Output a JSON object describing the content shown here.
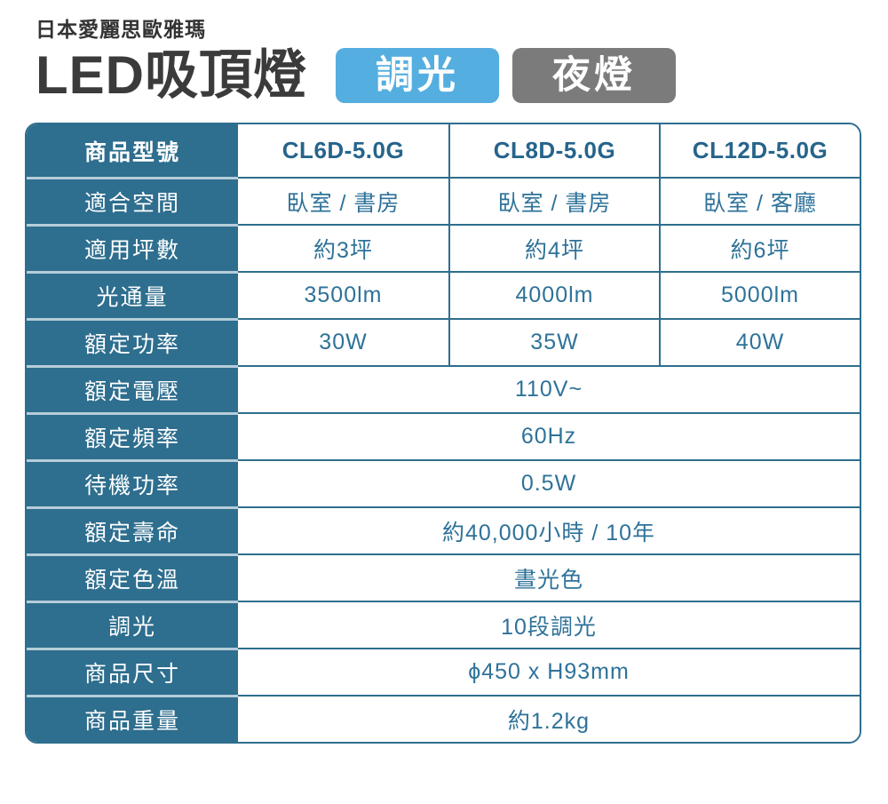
{
  "header": {
    "brand": "日本愛麗思歐雅瑪",
    "title": "LED吸頂燈",
    "badges": [
      {
        "label": "調光",
        "color": "#55aee0"
      },
      {
        "label": "夜燈",
        "color": "#7b7b7b"
      }
    ]
  },
  "colors": {
    "table_teal": "#2e6e8e",
    "value_text": "#2e7299",
    "label_separator": "#b6cdd9",
    "badge_blue": "#55aee0",
    "badge_gray": "#7b7b7b"
  },
  "table": {
    "rows": [
      {
        "label": "商品型號",
        "values": [
          "CL6D-5.0G",
          "CL8D-5.0G",
          "CL12D-5.0G"
        ]
      },
      {
        "label": "適合空間",
        "values": [
          "臥室 / 書房",
          "臥室 / 書房",
          "臥室 / 客廳"
        ]
      },
      {
        "label": "適用坪數",
        "values": [
          "約3坪",
          "約4坪",
          "約6坪"
        ]
      },
      {
        "label": "光通量",
        "values": [
          "3500lm",
          "4000lm",
          "5000lm"
        ]
      },
      {
        "label": "額定功率",
        "values": [
          "30W",
          "35W",
          "40W"
        ]
      },
      {
        "label": "額定電壓",
        "value": "110V~"
      },
      {
        "label": "額定頻率",
        "value": "60Hz"
      },
      {
        "label": "待機功率",
        "value": "0.5W"
      },
      {
        "label": "額定壽命",
        "value": "約40,000小時 / 10年"
      },
      {
        "label": "額定色溫",
        "value": "晝光色"
      },
      {
        "label": "調光",
        "value": "10段調光"
      },
      {
        "label": "商品尺寸",
        "value": "ϕ450 x H93mm"
      },
      {
        "label": "商品重量",
        "value": "約1.2kg"
      }
    ]
  }
}
